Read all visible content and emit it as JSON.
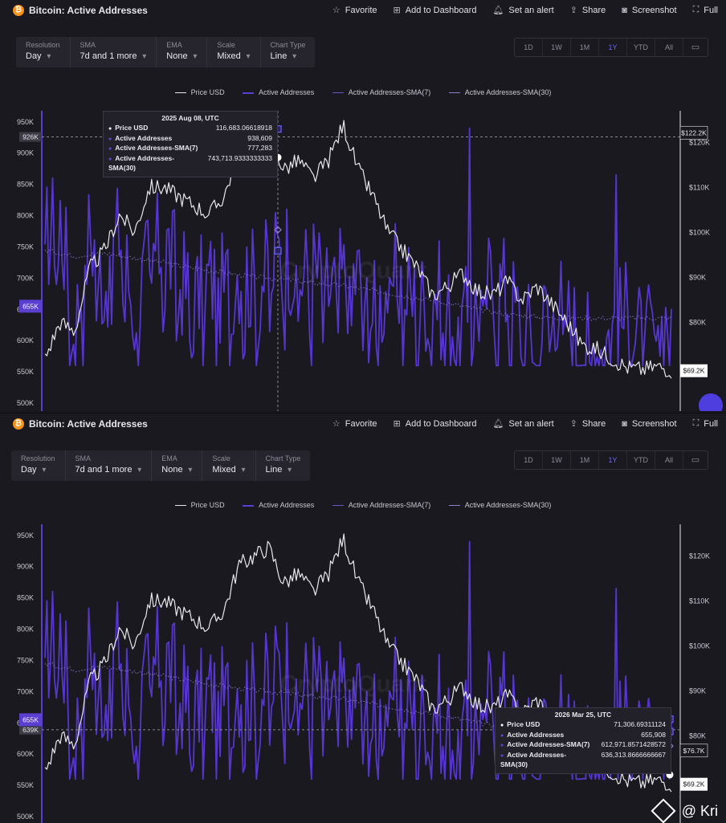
{
  "header": {
    "title": "Bitcoin: Active Addresses",
    "favorite": "Favorite",
    "add_dashboard": "Add to Dashboard",
    "set_alert": "Set an alert",
    "share": "Share",
    "screenshot": "Screenshot",
    "full": "Full"
  },
  "controls": {
    "resolution_label": "Resolution",
    "resolution": "Day",
    "sma_label": "SMA",
    "sma": "7d and 1 more",
    "ema_label": "EMA",
    "ema": "None",
    "scale_label": "Scale",
    "scale": "Mixed",
    "chart_type_label": "Chart Type",
    "chart_type": "Line"
  },
  "ranges": [
    "1D",
    "1W",
    "1M",
    "1Y",
    "YTD",
    "All"
  ],
  "active_range": "1Y",
  "legend": [
    "Price USD",
    "Active Addresses",
    "Active Addresses-SMA(7)",
    "Active Addresses-SMA(30)"
  ],
  "colors": {
    "price": "#e8e8ec",
    "active": "#5a3fd0",
    "sma7": "#6a57c4",
    "sma30": "#8c7fd0",
    "accent": "#6c64ff",
    "background": "#1a1920"
  },
  "chart_data": [
    {
      "type": "line",
      "title": "Bitcoin: Active Addresses",
      "left_axis_ticks": [
        "950K",
        "900K",
        "850K",
        "800K",
        "750K",
        "700K",
        "650K",
        "600K",
        "550K",
        "500K"
      ],
      "left_axis_values": [
        950000,
        900000,
        850000,
        800000,
        750000,
        700000,
        650000,
        600000,
        550000,
        500000
      ],
      "right_axis_ticks": [
        "$120K",
        "$110K",
        "$100K",
        "$90K",
        "$80K"
      ],
      "right_axis_values": [
        120000,
        110000,
        100000,
        90000,
        80000
      ],
      "left_ylim": [
        500000,
        960000
      ],
      "right_ylim": [
        62000,
        126000
      ],
      "price_series_anchor_points": [
        72000,
        80000,
        78000,
        92000,
        96000,
        104000,
        100000,
        110000,
        110000,
        108000,
        106000,
        104000,
        108000,
        118000,
        120000,
        122000,
        114000,
        116000,
        112000,
        116000,
        124000,
        114000,
        108000,
        100000,
        96000,
        92000,
        86000,
        88000,
        91000,
        87000,
        86000,
        89000,
        85000,
        88000,
        84000,
        80000,
        75000,
        74000,
        72000,
        70000,
        69500,
        70200,
        69400
      ],
      "active_addresses_series_anchor_points": [
        760000,
        805000,
        620000,
        780000,
        690000,
        780000,
        645000,
        730000,
        760000,
        705000,
        660000,
        700000,
        680000,
        720000,
        690000,
        710000,
        760000,
        700000,
        720000,
        680000,
        700000,
        705000,
        640000,
        690000,
        700000,
        650000,
        690000,
        640000,
        620000,
        655000,
        700000,
        680000,
        620000,
        600000,
        680000,
        640000,
        600000,
        590000,
        620000,
        640000,
        600000,
        610000,
        655000
      ],
      "sma30_series_anchor_points": [
        745000,
        740000,
        735000,
        738000,
        740000,
        736000,
        732000,
        728000,
        725000,
        720000,
        716000,
        712000,
        709000,
        705000,
        702000,
        700000,
        698000,
        695000,
        692000,
        690000,
        688000,
        684000,
        680000,
        676000,
        672000,
        668000,
        664000,
        660000,
        655000,
        650000,
        646000,
        642000,
        640000,
        638000,
        637000,
        636000,
        636000,
        636000,
        636000,
        636000,
        636000,
        636000,
        636000
      ],
      "left_axis_marker": "655K",
      "crosshair_left_label": "926K",
      "right_axis_labels": [
        "$122.2K",
        "$69.2K"
      ],
      "tooltip": {
        "date": "2025 Aug 08, UTC",
        "rows": [
          {
            "k": "Price USD",
            "v": "116,683.06618918"
          },
          {
            "k": "Active Addresses",
            "v": "938,609"
          },
          {
            "k": "Active Addresses-SMA(7)",
            "v": "777,283"
          },
          {
            "k": "Active Addresses-SMA(30)",
            "v": "743,713.9333333333"
          }
        ]
      }
    },
    {
      "type": "line",
      "title": "Bitcoin: Active Addresses",
      "left_axis_ticks": [
        "950K",
        "900K",
        "850K",
        "800K",
        "750K",
        "700K",
        "650K",
        "600K",
        "550K",
        "500K"
      ],
      "left_axis_values": [
        950000,
        900000,
        850000,
        800000,
        750000,
        700000,
        650000,
        600000,
        550000,
        500000
      ],
      "right_axis_ticks": [
        "$120K",
        "$110K",
        "$100K",
        "$90K",
        "$80K"
      ],
      "right_axis_values": [
        120000,
        110000,
        100000,
        90000,
        80000
      ],
      "left_ylim": [
        500000,
        960000
      ],
      "right_ylim": [
        62000,
        126000
      ],
      "left_axis_marker": "655K",
      "crosshair_left_label": "639K",
      "right_axis_labels": [
        "$76.7K",
        "$69.2K"
      ],
      "tooltip": {
        "date": "2026 Mar 25, UTC",
        "rows": [
          {
            "k": "Price USD",
            "v": "71,306.69311124"
          },
          {
            "k": "Active Addresses",
            "v": "655,908"
          },
          {
            "k": "Active Addresses-SMA(7)",
            "v": "612,971.8571428572"
          },
          {
            "k": "Active Addresses-SMA(30)",
            "v": "636,313.8666666667"
          }
        ]
      }
    }
  ],
  "watermark": {
    "text": "@ Kri"
  }
}
